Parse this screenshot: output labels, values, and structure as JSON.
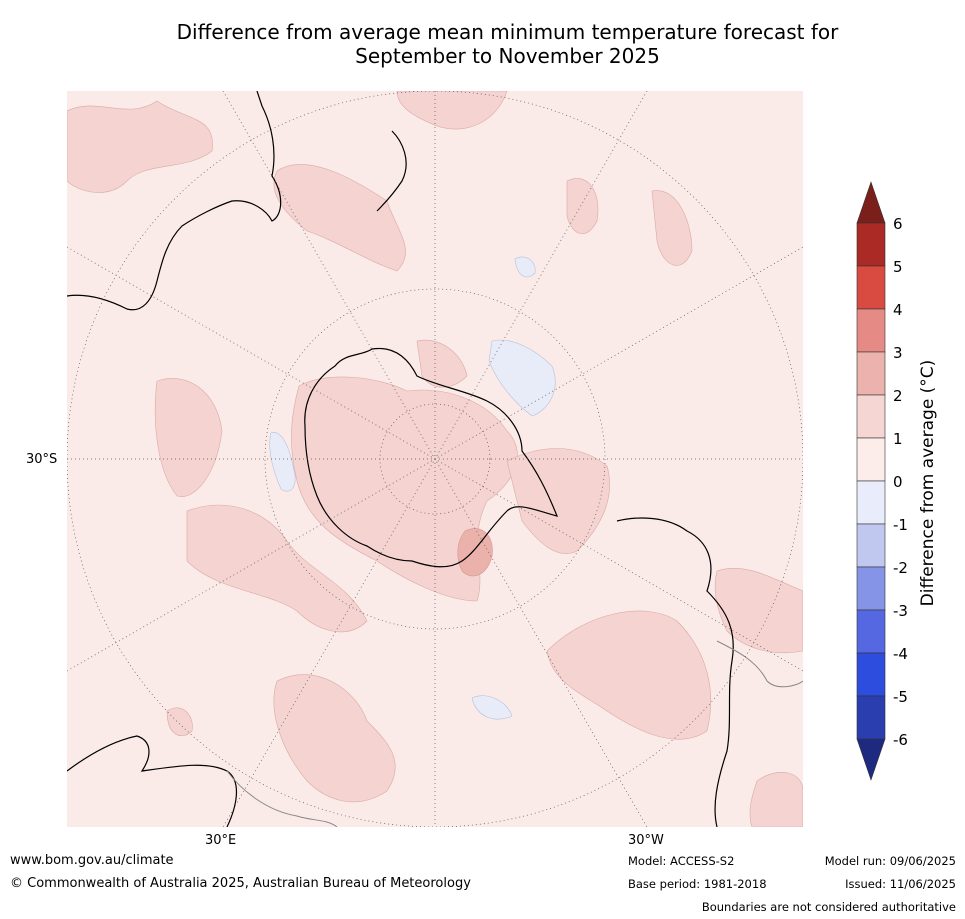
{
  "title_line1": "Difference from average mean minimum temperature forecast for",
  "title_line2": "September to November 2025",
  "map": {
    "labels": {
      "lat_30s": "30°S",
      "lon_30e": "30°E",
      "lon_30w": "30°W"
    },
    "colors": {
      "anomaly_0_to_1": "#fbebe8",
      "anomaly_1_to_2": "#f4d3d0",
      "anomaly_2_to_3": "#ebb1ab",
      "anomaly_neg1_to_0": "#e8ecf8",
      "land_outline": "#000000",
      "boundary_outline": "#888888"
    }
  },
  "colorbar": {
    "title": "Difference from average (°C)",
    "ticks": [
      "6",
      "5",
      "4",
      "3",
      "2",
      "1",
      "0",
      "-1",
      "-2",
      "-3",
      "-4",
      "-5",
      "-6"
    ],
    "colors": [
      "#7b1f1a",
      "#ab2a25",
      "#d94a40",
      "#e58a84",
      "#ecb2ad",
      "#f5d6d3",
      "#fcecea",
      "#e9ecfa",
      "#c0c8f0",
      "#8694e8",
      "#5568e2",
      "#2c4ddd",
      "#2a3eb0",
      "#1e2a80"
    ]
  },
  "footer": {
    "website": "www.bom.gov.au/climate",
    "copyright": "© Commonwealth of Australia 2025, Australian Bureau of Meteorology",
    "model": "Model: ACCESS-S2",
    "base_period": "Base period: 1981-2018",
    "model_run": "Model run: 09/06/2025",
    "issued": "Issued: 11/06/2025",
    "disclaimer": "Boundaries are not considered authoritative"
  }
}
